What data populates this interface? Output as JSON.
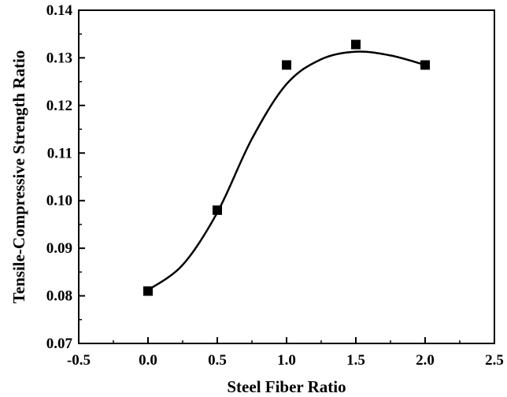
{
  "chart_data": {
    "type": "scatter",
    "title": "",
    "xlabel": "Steel Fiber Ratio",
    "ylabel": "Tensile-Compressive Strength Ratio",
    "xlim": [
      -0.5,
      2.5
    ],
    "ylim": [
      0.07,
      0.14
    ],
    "xticks": [
      "-0.5",
      "0.0",
      "0.5",
      "1.0",
      "1.5",
      "2.0",
      "2.5"
    ],
    "yticks": [
      "0.07",
      "0.08",
      "0.09",
      "0.10",
      "0.11",
      "0.12",
      "0.13",
      "0.14"
    ],
    "grid": false,
    "legend": "none",
    "series": [
      {
        "marker": "square",
        "color": "#000000",
        "points": [
          {
            "x": 0.0,
            "y": 0.081
          },
          {
            "x": 0.5,
            "y": 0.098
          },
          {
            "x": 1.0,
            "y": 0.1285
          },
          {
            "x": 1.5,
            "y": 0.1328
          },
          {
            "x": 2.0,
            "y": 0.1285
          }
        ]
      }
    ],
    "fit_curve": {
      "color": "#000000",
      "points": [
        {
          "x": 0.0,
          "y": 0.0812
        },
        {
          "x": 0.25,
          "y": 0.0865
        },
        {
          "x": 0.5,
          "y": 0.0975
        },
        {
          "x": 0.75,
          "y": 0.113
        },
        {
          "x": 1.0,
          "y": 0.1245
        },
        {
          "x": 1.25,
          "y": 0.1297
        },
        {
          "x": 1.5,
          "y": 0.1313
        },
        {
          "x": 1.75,
          "y": 0.1305
        },
        {
          "x": 2.0,
          "y": 0.1285
        }
      ]
    }
  }
}
